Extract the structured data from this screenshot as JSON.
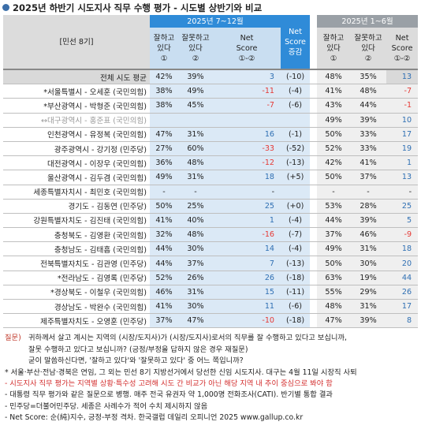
{
  "title": "2025년 하반기 시도지사 직무 수행 평가 - 시도별 상반기와 비교",
  "header": {
    "label": "[민선 8기]",
    "period_h2": "2025년 7~12월",
    "period_h1": "2025년 1~6월",
    "col_good": [
      "잘하고",
      "있다",
      "①"
    ],
    "col_bad": [
      "잘못하고",
      "있다",
      "②"
    ],
    "col_net": [
      "Net",
      "Score",
      "①-②"
    ],
    "col_change": [
      "Net",
      "Score",
      "증감"
    ]
  },
  "rows": [
    {
      "label": "전체 시도 평균",
      "h2_good": "42%",
      "h2_bad": "39%",
      "h2_net": "3",
      "change": "(-10)",
      "h1_good": "48%",
      "h1_bad": "35%",
      "h1_net": "13"
    },
    {
      "label": "*서울특별시 - 오세훈 (국민의힘)",
      "h2_good": "38%",
      "h2_bad": "49%",
      "h2_net": "-11",
      "change": "(-4)",
      "h1_good": "41%",
      "h1_bad": "48%",
      "h1_net": "-7"
    },
    {
      "label": "*부산광역시 - 박형준 (국민의힘)",
      "h2_good": "38%",
      "h2_bad": "45%",
      "h2_net": "-7",
      "change": "(-6)",
      "h1_good": "43%",
      "h1_bad": "44%",
      "h1_net": "-1"
    },
    {
      "label": "↔대구광역시 - 홍준표 (국민의힘)",
      "h2_good": "",
      "h2_bad": "",
      "h2_net": "",
      "change": "",
      "h1_good": "49%",
      "h1_bad": "39%",
      "h1_net": "10"
    },
    {
      "label": "인천광역시 - 유정복 (국민의힘)",
      "h2_good": "47%",
      "h2_bad": "31%",
      "h2_net": "16",
      "change": "(-1)",
      "h1_good": "50%",
      "h1_bad": "33%",
      "h1_net": "17"
    },
    {
      "label": "광주광역시 - 강기정 (민주당)",
      "h2_good": "27%",
      "h2_bad": "60%",
      "h2_net": "-33",
      "change": "(-52)",
      "h1_good": "52%",
      "h1_bad": "33%",
      "h1_net": "19"
    },
    {
      "label": "대전광역시 - 이장우 (국민의힘)",
      "h2_good": "36%",
      "h2_bad": "48%",
      "h2_net": "-12",
      "change": "(-13)",
      "h1_good": "42%",
      "h1_bad": "41%",
      "h1_net": "1"
    },
    {
      "label": "울산광역시 - 김두겸 (국민의힘)",
      "h2_good": "49%",
      "h2_bad": "31%",
      "h2_net": "18",
      "change": "(+5)",
      "h1_good": "50%",
      "h1_bad": "37%",
      "h1_net": "13"
    },
    {
      "label": "세종특별자치시 - 최민호 (국민의힘)",
      "h2_good": "-",
      "h2_bad": "-",
      "h2_net": "-",
      "change": "",
      "h1_good": "-",
      "h1_bad": "-",
      "h1_net": "-"
    },
    {
      "label": "경기도 - 김동연 (민주당)",
      "h2_good": "50%",
      "h2_bad": "25%",
      "h2_net": "25",
      "change": "(+0)",
      "h1_good": "53%",
      "h1_bad": "28%",
      "h1_net": "25"
    },
    {
      "label": "강원특별자치도 - 김진태 (국민의힘)",
      "h2_good": "41%",
      "h2_bad": "40%",
      "h2_net": "1",
      "change": "(-4)",
      "h1_good": "44%",
      "h1_bad": "39%",
      "h1_net": "5"
    },
    {
      "label": "충청북도 - 김영환 (국민의힘)",
      "h2_good": "32%",
      "h2_bad": "48%",
      "h2_net": "-16",
      "change": "(-7)",
      "h1_good": "37%",
      "h1_bad": "46%",
      "h1_net": "-9"
    },
    {
      "label": "충청남도 - 김태흠 (국민의힘)",
      "h2_good": "44%",
      "h2_bad": "30%",
      "h2_net": "14",
      "change": "(-4)",
      "h1_good": "49%",
      "h1_bad": "31%",
      "h1_net": "18"
    },
    {
      "label": "전북특별자치도 - 김관영 (민주당)",
      "h2_good": "44%",
      "h2_bad": "37%",
      "h2_net": "7",
      "change": "(-13)",
      "h1_good": "50%",
      "h1_bad": "30%",
      "h1_net": "20"
    },
    {
      "label": "*전라남도 - 김영록 (민주당)",
      "h2_good": "52%",
      "h2_bad": "26%",
      "h2_net": "26",
      "change": "(-18)",
      "h1_good": "63%",
      "h1_bad": "19%",
      "h1_net": "44"
    },
    {
      "label": "*경상북도 - 이철우 (국민의힘)",
      "h2_good": "46%",
      "h2_bad": "31%",
      "h2_net": "15",
      "change": "(-11)",
      "h1_good": "55%",
      "h1_bad": "29%",
      "h1_net": "26"
    },
    {
      "label": "경상남도 - 박완수 (국민의힘)",
      "h2_good": "41%",
      "h2_bad": "30%",
      "h2_net": "11",
      "change": "(-6)",
      "h1_good": "48%",
      "h1_bad": "31%",
      "h1_net": "17"
    },
    {
      "label": "제주특별자치도 - 오영훈 (민주당)",
      "h2_good": "37%",
      "h2_bad": "47%",
      "h2_net": "-10",
      "change": "(-18)",
      "h1_good": "47%",
      "h1_bad": "39%",
      "h1_net": "8"
    }
  ],
  "notes": {
    "question_label": "질문)",
    "question": [
      "귀하께서 살고 계시는 지역의 (시장/도지사)가 (시장/도지사)로서의 직무를 잘 수행하고 있다고 보십니까,",
      "잘못 수행하고 있다고 보십니까? (긍정/부정을 답하지 않은 경우 재질문)",
      "굳이 말씀하신다면, '잘하고 있다'와 '잘못하고 있다' 중 어느 쪽입니까?"
    ],
    "lines": [
      "* 서울·부산·전남·경북은 연임, 그 외는 민선 8기 지방선거에서 당선한 신임 시도지사. 대구는 4월 11일 시장직 사퇴",
      "- 시도지사 직무 평가는 지역별 상황·특수성 고려해 시도 간 비교가 아닌 해당 지역 내 추이 중심으로 봐야 함",
      "- 대통령 직무 평가와 같은 질문으로 병행. 매주 전국 유권자 약 1,000명 전화조사(CATI). 반기별 통합 결과",
      "- 민주당=더불어민주당. 세종은 사례수가 적어 수치 제시하지 않음",
      "- Net Score: 순(純)지수, 긍정-부정 격차. 한국갤럽 데일리 오피니언 2025 www.gallup.co.kr"
    ]
  }
}
